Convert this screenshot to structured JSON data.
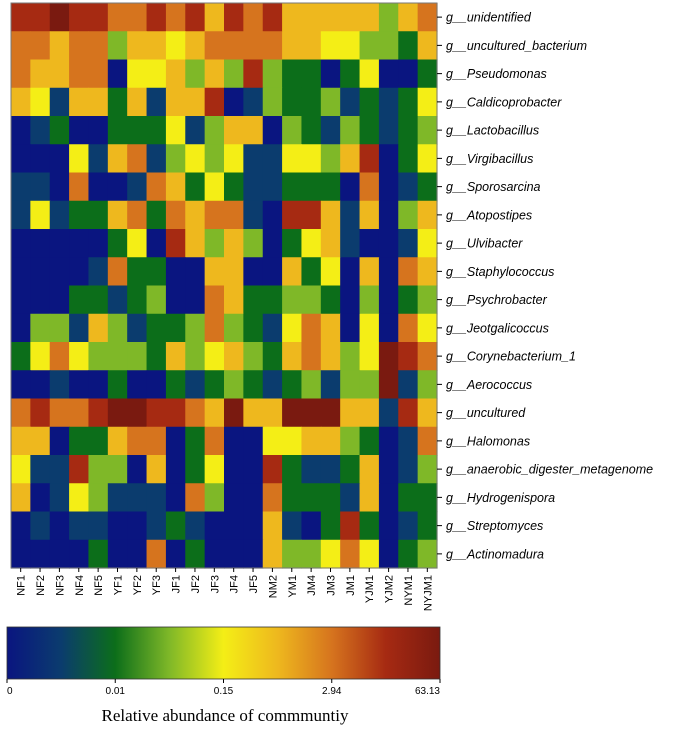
{
  "chart_data": {
    "type": "heatmap",
    "title": "",
    "columns": [
      "NF1",
      "NF2",
      "NF3",
      "NF4",
      "NF5",
      "YF1",
      "YF2",
      "YF3",
      "JF1",
      "JF2",
      "JF3",
      "JF4",
      "JF5",
      "NM2",
      "YM1",
      "JM4",
      "JM3",
      "JM1",
      "YJM1",
      "YJM2",
      "NYM1",
      "NYJM1"
    ],
    "rows": [
      "g__unidentified",
      "g__uncultured_bacterium",
      "g__Pseudomonas",
      "g__Caldicoprobacter",
      "g__Lactobacillus",
      "g__Virgibacillus",
      "g__Sporosarcina",
      "g__Atopostipes",
      "g__Ulvibacter",
      "g__Staphylococcus",
      "g__Psychrobacter",
      "g__Jeotgalicoccus",
      "g__Corynebacterium_1",
      "g__Aerococcus",
      "g__uncultured",
      "g__Halomonas",
      "g__anaerobic_digester_metagenome",
      "g__Hydrogenispora",
      "g__Streptomyces",
      "g__Actinomadura"
    ],
    "scale_levels": "0 = lowest (dark blue) ... 8 = highest (dark red)",
    "values": [
      [
        7,
        7,
        8,
        7,
        7,
        6,
        6,
        7,
        6,
        7,
        5,
        7,
        6,
        7,
        5,
        5,
        5,
        5,
        5,
        3,
        5,
        6
      ],
      [
        6,
        6,
        5,
        6,
        6,
        3,
        5,
        5,
        4,
        5,
        6,
        6,
        6,
        6,
        5,
        5,
        4,
        4,
        3,
        3,
        2,
        5
      ],
      [
        6,
        5,
        5,
        6,
        6,
        0,
        4,
        4,
        5,
        3,
        5,
        3,
        7,
        3,
        2,
        2,
        0,
        2,
        4,
        0,
        0,
        2
      ],
      [
        5,
        4,
        1,
        5,
        5,
        2,
        5,
        1,
        5,
        5,
        7,
        0,
        1,
        3,
        2,
        2,
        3,
        1,
        2,
        1,
        2,
        4
      ],
      [
        0,
        1,
        2,
        0,
        0,
        2,
        2,
        2,
        4,
        1,
        3,
        5,
        5,
        0,
        3,
        2,
        1,
        3,
        2,
        1,
        2,
        3
      ],
      [
        0,
        0,
        0,
        4,
        1,
        5,
        6,
        1,
        3,
        4,
        3,
        4,
        1,
        1,
        4,
        4,
        3,
        5,
        7,
        0,
        2,
        4
      ],
      [
        1,
        1,
        0,
        6,
        0,
        0,
        1,
        6,
        5,
        2,
        4,
        2,
        1,
        1,
        2,
        2,
        2,
        0,
        6,
        0,
        1,
        2
      ],
      [
        1,
        4,
        1,
        2,
        2,
        5,
        6,
        2,
        6,
        5,
        6,
        6,
        1,
        0,
        7,
        7,
        5,
        1,
        5,
        0,
        3,
        5
      ],
      [
        0,
        0,
        0,
        0,
        0,
        2,
        4,
        0,
        7,
        5,
        3,
        5,
        3,
        0,
        2,
        4,
        5,
        1,
        0,
        0,
        1,
        4
      ],
      [
        0,
        0,
        0,
        0,
        1,
        6,
        2,
        2,
        0,
        0,
        5,
        5,
        0,
        0,
        5,
        2,
        4,
        0,
        5,
        0,
        6,
        5
      ],
      [
        0,
        0,
        0,
        2,
        2,
        1,
        2,
        3,
        0,
        0,
        6,
        5,
        2,
        2,
        3,
        3,
        2,
        0,
        3,
        0,
        2,
        3
      ],
      [
        0,
        3,
        3,
        1,
        5,
        3,
        1,
        2,
        2,
        3,
        6,
        3,
        2,
        1,
        4,
        6,
        5,
        0,
        4,
        0,
        6,
        4
      ],
      [
        2,
        4,
        6,
        4,
        3,
        3,
        3,
        2,
        5,
        3,
        4,
        5,
        3,
        2,
        5,
        6,
        5,
        3,
        4,
        8,
        7,
        6
      ],
      [
        0,
        0,
        1,
        0,
        0,
        2,
        0,
        0,
        2,
        1,
        2,
        3,
        2,
        1,
        2,
        3,
        1,
        3,
        3,
        8,
        1,
        3
      ],
      [
        6,
        7,
        6,
        6,
        7,
        8,
        8,
        7,
        7,
        6,
        5,
        8,
        5,
        5,
        8,
        8,
        8,
        5,
        5,
        1,
        7,
        5
      ],
      [
        5,
        5,
        0,
        2,
        2,
        5,
        6,
        6,
        0,
        2,
        6,
        0,
        0,
        4,
        4,
        5,
        5,
        3,
        2,
        0,
        1,
        6
      ],
      [
        4,
        1,
        1,
        7,
        3,
        3,
        0,
        5,
        0,
        2,
        4,
        0,
        0,
        7,
        2,
        1,
        1,
        2,
        5,
        0,
        1,
        3
      ],
      [
        5,
        0,
        1,
        4,
        3,
        1,
        1,
        1,
        0,
        6,
        3,
        0,
        0,
        6,
        2,
        2,
        2,
        1,
        5,
        0,
        2,
        2
      ],
      [
        0,
        1,
        0,
        1,
        1,
        0,
        0,
        1,
        2,
        1,
        0,
        0,
        0,
        5,
        1,
        0,
        2,
        7,
        2,
        0,
        1,
        2
      ],
      [
        0,
        0,
        0,
        0,
        2,
        0,
        0,
        6,
        0,
        2,
        0,
        0,
        0,
        5,
        3,
        3,
        4,
        6,
        4,
        0,
        2,
        3
      ]
    ],
    "colorbar": {
      "tick_labels": [
        "0",
        "0.01",
        "0.15",
        "2.94",
        "63.13"
      ],
      "label": "Relative abundance of commmuntiy",
      "colors": [
        "#0a1580",
        "#0b3c6e",
        "#0c6e1a",
        "#7fb828",
        "#f4ee16",
        "#eeb81e",
        "#d6741e",
        "#a62a12",
        "#7a1a10"
      ]
    }
  }
}
